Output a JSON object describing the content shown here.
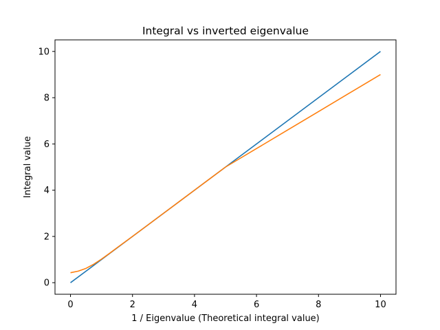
{
  "chart_data": {
    "type": "line",
    "title": "Integral vs inverted eigenvalue",
    "xlabel": "1 / Eigenvalue (Theoretical integral value)",
    "ylabel": "Integral value",
    "xlim": [
      -0.5,
      10.5
    ],
    "ylim": [
      -0.5,
      10.5
    ],
    "xticks": [
      0,
      2,
      4,
      6,
      8,
      10
    ],
    "yticks": [
      0,
      2,
      4,
      6,
      8,
      10
    ],
    "grid": false,
    "legend": "none",
    "series": [
      {
        "color": "#1f77b4",
        "x": [
          0,
          10
        ],
        "y": [
          0,
          10
        ]
      },
      {
        "color": "#ff7f0e",
        "x": [
          0,
          0.25,
          0.5,
          0.75,
          1.0,
          1.25,
          1.5,
          2.0,
          2.5,
          3.0,
          3.5,
          4.0,
          4.5,
          5.0,
          6.0,
          7.0,
          8.0,
          9.0,
          10.0
        ],
        "y": [
          0.43,
          0.5,
          0.62,
          0.8,
          1.02,
          1.26,
          1.51,
          2.0,
          2.5,
          3.0,
          3.5,
          4.0,
          4.5,
          5.0,
          5.8,
          6.6,
          7.4,
          8.2,
          9.0
        ]
      }
    ]
  }
}
